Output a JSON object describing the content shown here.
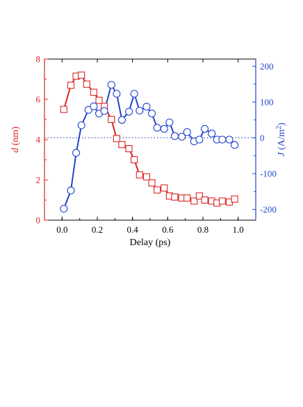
{
  "chart_data": {
    "type": "line",
    "title": "",
    "xlabel": "Delay (ps)",
    "xlim": [
      -0.1,
      1.1
    ],
    "x_ticks": [
      0.0,
      0.2,
      0.4,
      0.6,
      0.8,
      1.0
    ],
    "x_tick_labels": [
      "0.0",
      "0.2",
      "0.4",
      "0.6",
      "0.8",
      "1.0"
    ],
    "grid": false,
    "legend": "none",
    "y_left": {
      "label_italic": "d",
      "label_unit": " (nm)",
      "ylim": [
        0,
        8
      ],
      "ticks": [
        0,
        2,
        4,
        6,
        8
      ],
      "tick_labels": [
        "0",
        "2",
        "4",
        "6",
        "8"
      ],
      "color": "#dd2222"
    },
    "y_right": {
      "label_italic": "J",
      "label_unit_prefix": " (A/m",
      "label_unit_sup": "2",
      "label_unit_suffix": ")",
      "ylim": [
        -230,
        220
      ],
      "ticks": [
        -200,
        -100,
        0,
        100,
        200
      ],
      "tick_labels": [
        "-200",
        "-100",
        "0",
        "100",
        "200"
      ],
      "color": "#2244cc"
    },
    "reference_line": {
      "axis": "right",
      "value": 0,
      "style": "dotted",
      "color": "#2244cc"
    },
    "series": [
      {
        "axis": "left",
        "marker": "square",
        "color": "#dd2222",
        "x": [
          0.01,
          0.05,
          0.08,
          0.11,
          0.14,
          0.18,
          0.21,
          0.24,
          0.28,
          0.31,
          0.34,
          0.38,
          0.41,
          0.44,
          0.48,
          0.51,
          0.54,
          0.58,
          0.61,
          0.64,
          0.68,
          0.71,
          0.75,
          0.78,
          0.81,
          0.85,
          0.88,
          0.91,
          0.95,
          0.98
        ],
        "values": [
          5.5,
          6.7,
          7.15,
          7.2,
          6.75,
          6.35,
          5.95,
          5.65,
          5.0,
          4.05,
          3.75,
          3.55,
          3.0,
          2.25,
          2.15,
          1.85,
          1.5,
          1.6,
          1.2,
          1.15,
          1.1,
          1.1,
          0.95,
          1.2,
          1.0,
          0.95,
          0.85,
          0.95,
          0.9,
          1.05
        ]
      },
      {
        "axis": "right",
        "marker": "circle",
        "color": "#2244cc",
        "x": [
          0.01,
          0.05,
          0.08,
          0.11,
          0.15,
          0.18,
          0.21,
          0.24,
          0.28,
          0.31,
          0.34,
          0.38,
          0.41,
          0.44,
          0.48,
          0.51,
          0.54,
          0.58,
          0.61,
          0.64,
          0.68,
          0.71,
          0.75,
          0.78,
          0.81,
          0.85,
          0.88,
          0.91,
          0.95,
          0.98
        ],
        "values": [
          -198,
          -147,
          -42,
          35,
          78,
          88,
          68,
          75,
          148,
          123,
          50,
          73,
          123,
          76,
          87,
          68,
          28,
          25,
          43,
          5,
          3,
          16,
          -10,
          -5,
          25,
          12,
          -5,
          -5,
          -5,
          -20
        ]
      }
    ]
  }
}
